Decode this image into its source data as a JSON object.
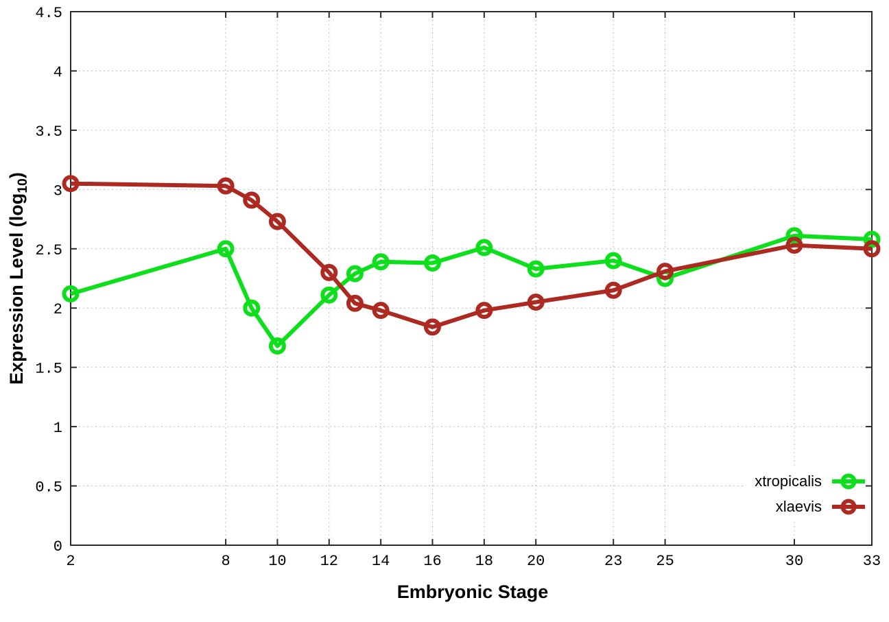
{
  "chart_data": {
    "type": "line",
    "title": "",
    "xlabel": "Embryonic Stage",
    "ylabel": "Expression Level (log10)",
    "ylabel_prefix": "Expression Level (log",
    "ylabel_sub": "10",
    "ylabel_suffix": ")",
    "x": [
      2,
      8,
      9,
      10,
      12,
      13,
      14,
      16,
      18,
      20,
      23,
      25,
      30,
      33
    ],
    "xlim": [
      2,
      33
    ],
    "ylim": [
      0,
      4.5
    ],
    "xticks": {
      "values": [
        2,
        8,
        10,
        12,
        14,
        16,
        18,
        20,
        23,
        25,
        30,
        33
      ],
      "labels": [
        "2",
        "8",
        "10",
        "12",
        "14",
        "16",
        "18",
        "20",
        "23",
        "25",
        "30",
        "33"
      ]
    },
    "yticks": {
      "values": [
        0,
        0.5,
        1,
        1.5,
        2,
        2.5,
        3,
        3.5,
        4,
        4.5
      ],
      "labels": [
        "0",
        "0.5",
        "1",
        "1.5",
        "2",
        "2.5",
        "3",
        "3.5",
        "4",
        "4.5"
      ]
    },
    "grid": true,
    "legend_position": "bottom-right",
    "series": [
      {
        "name": "xtropicalis",
        "color": "#0ddf1c",
        "values": [
          2.12,
          2.5,
          2.0,
          1.68,
          2.11,
          2.29,
          2.39,
          2.38,
          2.51,
          2.33,
          2.4,
          2.25,
          2.61,
          2.58
        ]
      },
      {
        "name": "xlaevis",
        "color": "#ac2a21",
        "values": [
          3.05,
          3.03,
          2.91,
          2.73,
          2.3,
          2.04,
          1.98,
          1.84,
          1.98,
          2.05,
          2.15,
          2.31,
          2.53,
          2.5
        ]
      }
    ],
    "style": {
      "grid_color": "#bdbdbd",
      "border_color": "#2b2b2b",
      "background": "#ffffff",
      "line_width": 6,
      "marker_radius": 9.5,
      "marker_stroke": 6
    }
  }
}
